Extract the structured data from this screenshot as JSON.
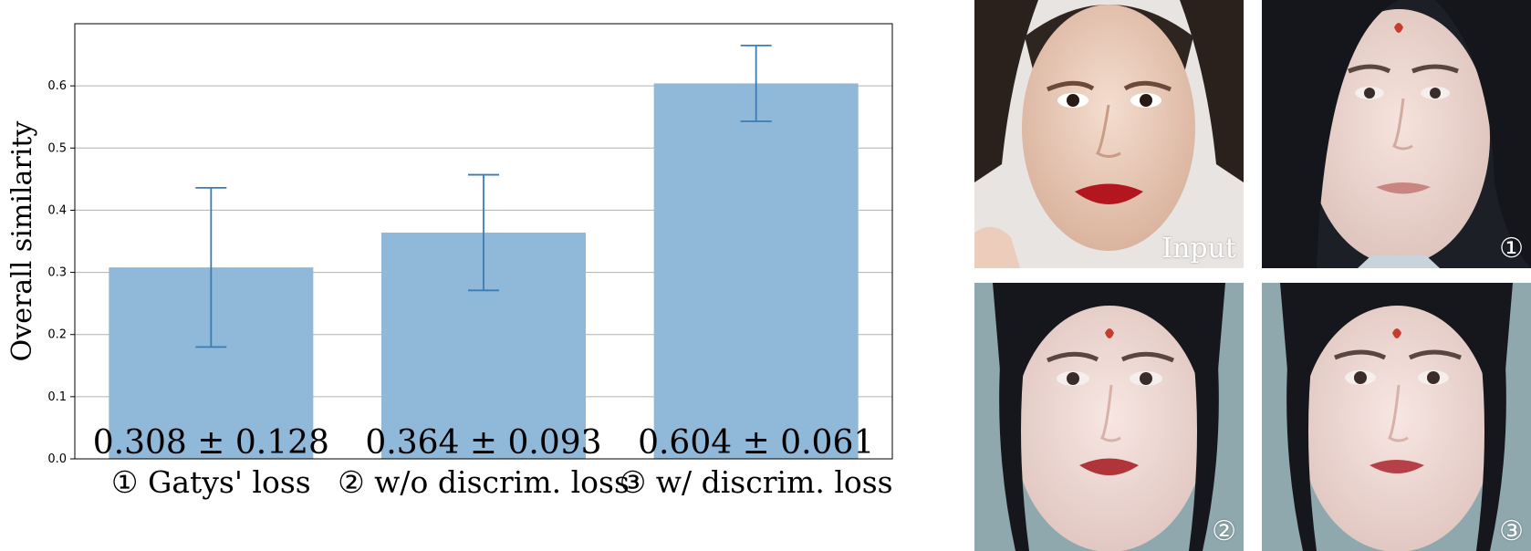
{
  "chart_data": {
    "type": "bar",
    "categories": [
      "① Gatys' loss",
      "② w/o discrim. loss",
      "③ w/ discrim. loss"
    ],
    "values": [
      0.308,
      0.364,
      0.604
    ],
    "errors": [
      0.128,
      0.093,
      0.061
    ],
    "value_labels": [
      "0.308 ± 0.128",
      "0.364 ± 0.093",
      "0.604 ± 0.061"
    ],
    "ylabel": "Overall similarity",
    "ylim": [
      0,
      0.7
    ],
    "yticks": [
      "0.0",
      "0.1",
      "0.2",
      "0.3",
      "0.4",
      "0.5",
      "0.6"
    ],
    "grid": true,
    "colors": {
      "bar": "#8fb8d9",
      "error_bar": "#3a7db5"
    }
  },
  "photos": [
    {
      "label": "Input"
    },
    {
      "label": "①"
    },
    {
      "label": "②"
    },
    {
      "label": "③"
    }
  ]
}
